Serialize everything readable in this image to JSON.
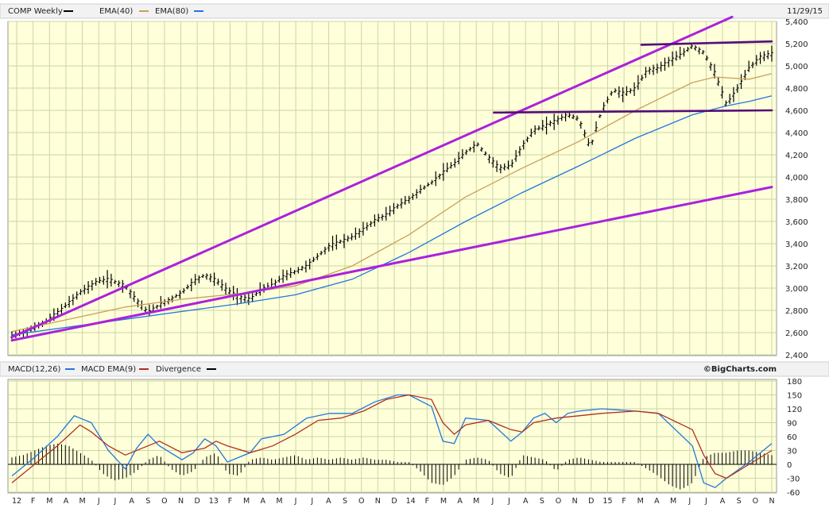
{
  "chart_data": [
    {
      "type": "line",
      "header": {
        "symbol": "COMP Weekly",
        "ema1": "EMA(40)",
        "ema2": "EMA(80)",
        "date": "11/29/15"
      },
      "yticks": [
        "5,400",
        "5,200",
        "5,000",
        "4,800",
        "4,600",
        "4,400",
        "4,200",
        "4,000",
        "3,800",
        "3,600",
        "3,400",
        "3,200",
        "3,000",
        "2,800",
        "2,600",
        "2,400"
      ],
      "ylim": [
        2400,
        5400
      ],
      "series": [
        {
          "name": "COMP Weekly",
          "style": "ohlc-bars",
          "color": "#000000",
          "points": [
            [
              0,
              2570
            ],
            [
              1.5,
              2620
            ],
            [
              3,
              2700
            ],
            [
              4.5,
              2820
            ],
            [
              6,
              2960
            ],
            [
              7.5,
              3060
            ],
            [
              8.5,
              3080
            ],
            [
              10,
              3020
            ],
            [
              11,
              2890
            ],
            [
              12,
              2780
            ],
            [
              13,
              2850
            ],
            [
              14,
              2900
            ],
            [
              15,
              2960
            ],
            [
              16,
              3060
            ],
            [
              17,
              3120
            ],
            [
              18,
              3070
            ],
            [
              19,
              2980
            ],
            [
              20,
              2920
            ],
            [
              21,
              2900
            ],
            [
              22,
              2990
            ],
            [
              23,
              3030
            ],
            [
              24,
              3110
            ],
            [
              25,
              3150
            ],
            [
              26,
              3200
            ],
            [
              27,
              3290
            ],
            [
              28,
              3380
            ],
            [
              29,
              3420
            ],
            [
              30,
              3460
            ],
            [
              31,
              3530
            ],
            [
              32,
              3610
            ],
            [
              33,
              3660
            ],
            [
              34,
              3740
            ],
            [
              35,
              3800
            ],
            [
              36,
              3880
            ],
            [
              37,
              3950
            ],
            [
              38,
              4040
            ],
            [
              39,
              4120
            ],
            [
              40,
              4220
            ],
            [
              41,
              4300
            ],
            [
              42,
              4180
            ],
            [
              43,
              4080
            ],
            [
              44,
              4100
            ],
            [
              45,
              4280
            ],
            [
              46,
              4420
            ],
            [
              47,
              4460
            ],
            [
              48,
              4510
            ],
            [
              49,
              4560
            ],
            [
              50,
              4520
            ],
            [
              51,
              4260
            ],
            [
              52,
              4600
            ],
            [
              53,
              4780
            ],
            [
              54,
              4750
            ],
            [
              55,
              4800
            ],
            [
              56,
              4960
            ],
            [
              57,
              4980
            ],
            [
              58,
              5050
            ],
            [
              59,
              5100
            ],
            [
              60,
              5180
            ],
            [
              61,
              5120
            ],
            [
              62,
              4930
            ],
            [
              63,
              4650
            ],
            [
              64,
              4800
            ],
            [
              65,
              4980
            ],
            [
              66,
              5080
            ],
            [
              67,
              5110
            ]
          ]
        },
        {
          "name": "EMA(40)",
          "color": "#c8a05a",
          "points": [
            [
              0,
              2610
            ],
            [
              5,
              2720
            ],
            [
              10,
              2830
            ],
            [
              15,
              2900
            ],
            [
              20,
              2950
            ],
            [
              25,
              3020
            ],
            [
              30,
              3200
            ],
            [
              35,
              3480
            ],
            [
              40,
              3820
            ],
            [
              45,
              4080
            ],
            [
              50,
              4320
            ],
            [
              55,
              4600
            ],
            [
              60,
              4850
            ],
            [
              62,
              4900
            ],
            [
              65,
              4880
            ],
            [
              67,
              4930
            ]
          ]
        },
        {
          "name": "EMA(80)",
          "color": "#2277dd",
          "points": [
            [
              0,
              2580
            ],
            [
              5,
              2650
            ],
            [
              10,
              2720
            ],
            [
              15,
              2790
            ],
            [
              20,
              2860
            ],
            [
              25,
              2940
            ],
            [
              30,
              3080
            ],
            [
              35,
              3320
            ],
            [
              40,
              3600
            ],
            [
              45,
              3860
            ],
            [
              50,
              4100
            ],
            [
              55,
              4350
            ],
            [
              60,
              4560
            ],
            [
              63,
              4640
            ],
            [
              65,
              4680
            ],
            [
              67,
              4730
            ]
          ]
        }
      ],
      "trendlines": [
        {
          "name": "upper-channel",
          "color": "#aa22dd",
          "from": [
            0,
            2560
          ],
          "to": [
            63.5,
            5440
          ]
        },
        {
          "name": "lower-channel",
          "color": "#aa22dd",
          "from": [
            0,
            2530
          ],
          "to": [
            67,
            3910
          ]
        },
        {
          "name": "resistance-5200",
          "color": "#550c7a",
          "from": [
            55.5,
            5190
          ],
          "to": [
            67,
            5220
          ]
        },
        {
          "name": "support-4600",
          "color": "#550c7a",
          "from": [
            42.5,
            4580
          ],
          "to": [
            67,
            4600
          ]
        }
      ],
      "credit": "©BigCharts.com"
    },
    {
      "type": "line",
      "header": {
        "macd": "MACD(12,26)",
        "signal": "MACD EMA(9)",
        "divergence": "Divergence"
      },
      "yticks": [
        "180",
        "150",
        "120",
        "90",
        "60",
        "30",
        "0",
        "-30",
        "-60"
      ],
      "ylim": [
        -60,
        180
      ],
      "series": [
        {
          "name": "MACD(12,26)",
          "color": "#2277dd",
          "points": [
            [
              0,
              -25
            ],
            [
              2,
              15
            ],
            [
              4,
              60
            ],
            [
              5.5,
              105
            ],
            [
              7,
              90
            ],
            [
              8.5,
              30
            ],
            [
              10,
              -10
            ],
            [
              11,
              35
            ],
            [
              12,
              65
            ],
            [
              13,
              40
            ],
            [
              15,
              10
            ],
            [
              16,
              25
            ],
            [
              17,
              55
            ],
            [
              18,
              40
            ],
            [
              19,
              5
            ],
            [
              21,
              25
            ],
            [
              22,
              55
            ],
            [
              24,
              65
            ],
            [
              26,
              100
            ],
            [
              28,
              110
            ],
            [
              30,
              110
            ],
            [
              32,
              135
            ],
            [
              34,
              150
            ],
            [
              35,
              150
            ],
            [
              37,
              125
            ],
            [
              38,
              50
            ],
            [
              39,
              45
            ],
            [
              40,
              100
            ],
            [
              42,
              95
            ],
            [
              44,
              50
            ],
            [
              45,
              70
            ],
            [
              46,
              100
            ],
            [
              47,
              110
            ],
            [
              48,
              90
            ],
            [
              49,
              110
            ],
            [
              50,
              115
            ],
            [
              52,
              120
            ],
            [
              55,
              115
            ],
            [
              57,
              110
            ],
            [
              60,
              40
            ],
            [
              61,
              -40
            ],
            [
              62,
              -50
            ],
            [
              63,
              -30
            ],
            [
              65,
              5
            ],
            [
              67,
              45
            ]
          ]
        },
        {
          "name": "MACD EMA(9)",
          "color": "#b03020",
          "points": [
            [
              0,
              -40
            ],
            [
              2,
              0
            ],
            [
              4,
              40
            ],
            [
              6,
              85
            ],
            [
              7,
              70
            ],
            [
              8.5,
              40
            ],
            [
              10,
              20
            ],
            [
              12,
              40
            ],
            [
              13,
              50
            ],
            [
              15,
              25
            ],
            [
              17,
              35
            ],
            [
              18,
              50
            ],
            [
              19,
              40
            ],
            [
              21,
              25
            ],
            [
              23,
              40
            ],
            [
              25,
              65
            ],
            [
              27,
              95
            ],
            [
              29,
              100
            ],
            [
              31,
              115
            ],
            [
              33,
              140
            ],
            [
              35,
              150
            ],
            [
              37,
              140
            ],
            [
              38,
              90
            ],
            [
              39,
              65
            ],
            [
              40,
              85
            ],
            [
              42,
              95
            ],
            [
              44,
              75
            ],
            [
              45,
              70
            ],
            [
              46,
              90
            ],
            [
              48,
              100
            ],
            [
              50,
              105
            ],
            [
              52,
              110
            ],
            [
              55,
              115
            ],
            [
              57,
              110
            ],
            [
              60,
              75
            ],
            [
              61,
              20
            ],
            [
              62,
              -20
            ],
            [
              63,
              -30
            ],
            [
              65,
              0
            ],
            [
              67,
              30
            ]
          ]
        }
      ],
      "divergence_bars": [
        [
          0,
          15
        ],
        [
          1,
          20
        ],
        [
          2,
          30
        ],
        [
          3,
          40
        ],
        [
          4,
          45
        ],
        [
          5,
          40
        ],
        [
          6,
          25
        ],
        [
          7,
          10
        ],
        [
          8,
          -20
        ],
        [
          9,
          -35
        ],
        [
          10,
          -30
        ],
        [
          11,
          -15
        ],
        [
          12,
          10
        ],
        [
          13,
          20
        ],
        [
          14,
          -10
        ],
        [
          15,
          -25
        ],
        [
          16,
          -15
        ],
        [
          17,
          15
        ],
        [
          18,
          25
        ],
        [
          19,
          -20
        ],
        [
          20,
          -25
        ],
        [
          21,
          10
        ],
        [
          22,
          15
        ],
        [
          23,
          10
        ],
        [
          24,
          15
        ],
        [
          25,
          20
        ],
        [
          26,
          10
        ],
        [
          27,
          15
        ],
        [
          28,
          10
        ],
        [
          29,
          15
        ],
        [
          30,
          10
        ],
        [
          31,
          15
        ],
        [
          32,
          10
        ],
        [
          33,
          10
        ],
        [
          34,
          5
        ],
        [
          35,
          5
        ],
        [
          36,
          -15
        ],
        [
          37,
          -40
        ],
        [
          38,
          -45
        ],
        [
          39,
          -25
        ],
        [
          40,
          10
        ],
        [
          41,
          15
        ],
        [
          42,
          10
        ],
        [
          43,
          -20
        ],
        [
          44,
          -30
        ],
        [
          45,
          20
        ],
        [
          46,
          15
        ],
        [
          47,
          10
        ],
        [
          48,
          -15
        ],
        [
          49,
          10
        ],
        [
          50,
          15
        ],
        [
          51,
          10
        ],
        [
          52,
          5
        ],
        [
          53,
          5
        ],
        [
          54,
          5
        ],
        [
          55,
          5
        ],
        [
          56,
          -10
        ],
        [
          57,
          -25
        ],
        [
          58,
          -45
        ],
        [
          59,
          -55
        ],
        [
          60,
          -40
        ],
        [
          61,
          15
        ],
        [
          62,
          25
        ],
        [
          63,
          25
        ],
        [
          64,
          30
        ],
        [
          65,
          30
        ],
        [
          66,
          25
        ],
        [
          67,
          20
        ]
      ],
      "xticks": [
        "12",
        "F",
        "M",
        "A",
        "M",
        "J",
        "J",
        "A",
        "S",
        "O",
        "N",
        "D",
        "13",
        "F",
        "M",
        "A",
        "M",
        "J",
        "J",
        "A",
        "S",
        "O",
        "N",
        "D",
        "14",
        "F",
        "M",
        "A",
        "M",
        "J",
        "J",
        "A",
        "S",
        "O",
        "N",
        "D",
        "15",
        "F",
        "M",
        "A",
        "M",
        "J",
        "J",
        "A",
        "S",
        "O",
        "N"
      ]
    }
  ]
}
